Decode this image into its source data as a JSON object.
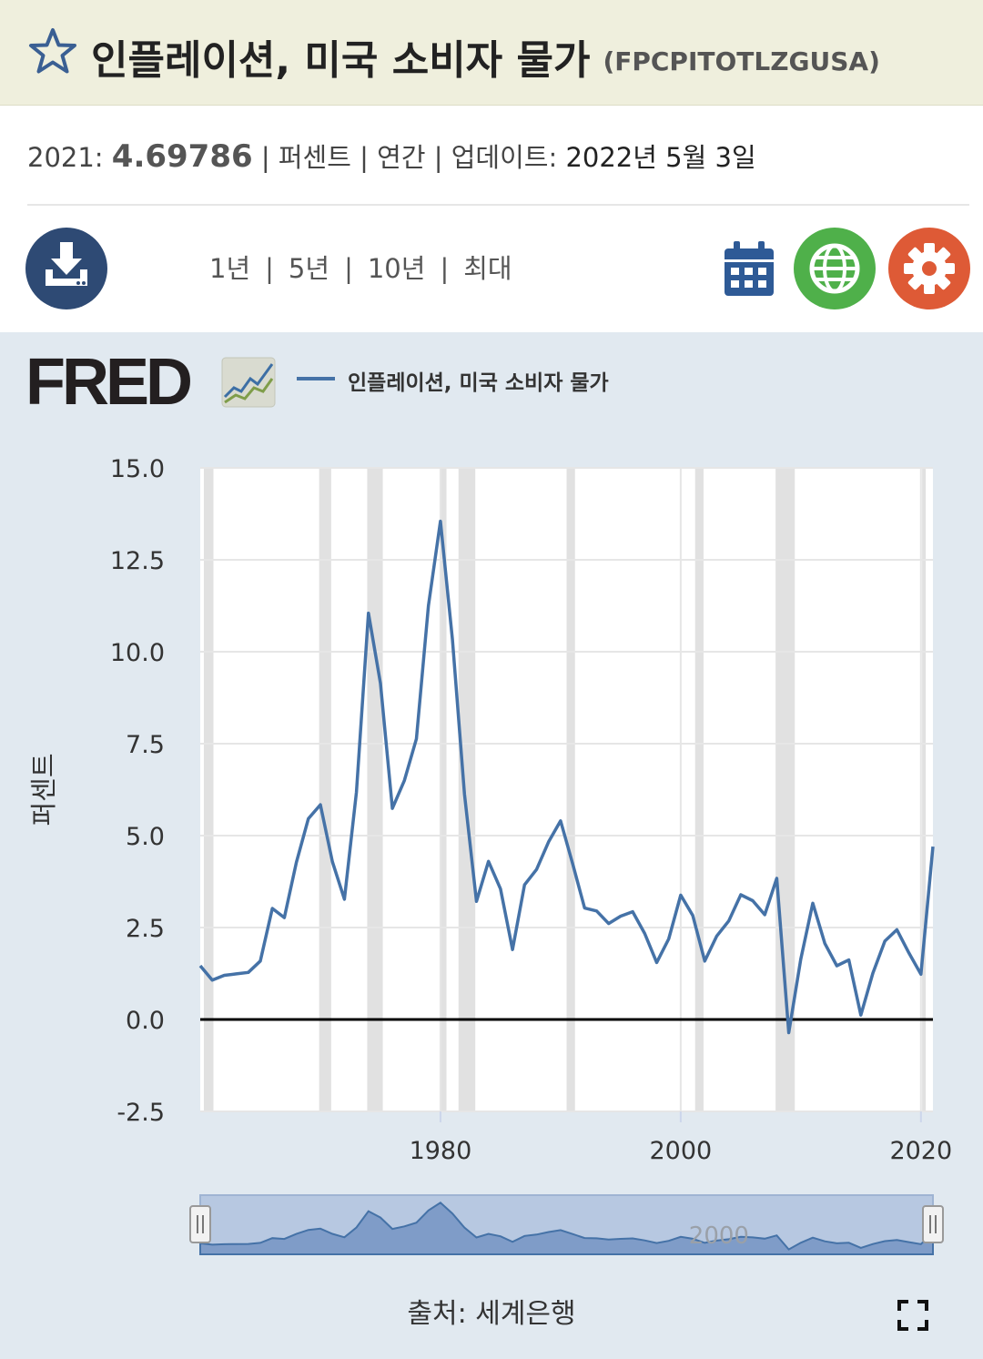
{
  "header": {
    "title": "인플레이션, 미국 소비자 물가",
    "series_id": "(FPCPITOTLZGUSA)"
  },
  "meta": {
    "year_label": "2021:",
    "value": "4.69786",
    "unit": "퍼센트",
    "frequency": "연간",
    "updated_label": "업데이트:",
    "updated_date": "2022년 5월 3일"
  },
  "toolbar": {
    "ranges": [
      "1년",
      "5년",
      "10년",
      "최대"
    ],
    "download_icon": "download-icon",
    "calendar_icon": "calendar-icon",
    "globe_icon": "globe-icon",
    "settings_icon": "gear-icon"
  },
  "legend": {
    "label": "인플레이션, 미국 소비자 물가",
    "color": "#4572a7"
  },
  "source": "출처: 세계은행",
  "colors": {
    "title_bg": "#efefdd",
    "panel_bg": "#e1e9f0",
    "line": "#4572a7",
    "download": "#2e4a74",
    "globe": "#4fb04a",
    "settings": "#de5a36",
    "recession": "#e1e1e1"
  },
  "chart_data": {
    "type": "line",
    "title": "",
    "xlabel": "",
    "ylabel": "퍼센트",
    "xlim": [
      1960,
      2021
    ],
    "ylim": [
      -2.5,
      15
    ],
    "yticks": [
      "15.0",
      "12.5",
      "10.0",
      "7.5",
      "5.0",
      "2.5",
      "0.0",
      "-2.5"
    ],
    "ytick_values": [
      15,
      12.5,
      10,
      7.5,
      5,
      2.5,
      0,
      -2.5
    ],
    "xticks": [
      "1980",
      "2000",
      "2020"
    ],
    "xtick_values": [
      1980,
      2000,
      2020
    ],
    "grid": true,
    "recessions": [
      [
        1960.3,
        1961.1
      ],
      [
        1969.9,
        1970.9
      ],
      [
        1973.9,
        1975.2
      ],
      [
        1980.0,
        1980.5
      ],
      [
        1981.5,
        1982.9
      ],
      [
        1990.5,
        1991.2
      ],
      [
        2001.2,
        2001.9
      ],
      [
        2007.9,
        2009.5
      ],
      [
        2020.1,
        2020.3
      ]
    ],
    "navigator_tick": "2000",
    "series": [
      {
        "name": "인플레이션, 미국 소비자 물가",
        "x": [
          1960,
          1961,
          1962,
          1963,
          1964,
          1965,
          1966,
          1967,
          1968,
          1969,
          1970,
          1971,
          1972,
          1973,
          1974,
          1975,
          1976,
          1977,
          1978,
          1979,
          1980,
          1981,
          1982,
          1983,
          1984,
          1985,
          1986,
          1987,
          1988,
          1989,
          1990,
          1991,
          1992,
          1993,
          1994,
          1995,
          1996,
          1997,
          1998,
          1999,
          2000,
          2001,
          2002,
          2003,
          2004,
          2005,
          2006,
          2007,
          2008,
          2009,
          2010,
          2011,
          2012,
          2013,
          2014,
          2015,
          2016,
          2017,
          2018,
          2019,
          2020,
          2021
        ],
        "values": [
          1.46,
          1.07,
          1.2,
          1.24,
          1.28,
          1.59,
          3.02,
          2.77,
          4.27,
          5.46,
          5.84,
          4.29,
          3.27,
          6.18,
          11.05,
          9.14,
          5.74,
          6.5,
          7.63,
          11.25,
          13.55,
          10.33,
          6.13,
          3.21,
          4.3,
          3.55,
          1.9,
          3.66,
          4.08,
          4.83,
          5.4,
          4.24,
          3.03,
          2.95,
          2.61,
          2.81,
          2.93,
          2.34,
          1.55,
          2.19,
          3.38,
          2.83,
          1.59,
          2.27,
          2.68,
          3.39,
          3.23,
          2.85,
          3.84,
          -0.36,
          1.64,
          3.16,
          2.07,
          1.46,
          1.62,
          0.12,
          1.26,
          2.13,
          2.44,
          1.81,
          1.23,
          4.7
        ]
      }
    ]
  }
}
